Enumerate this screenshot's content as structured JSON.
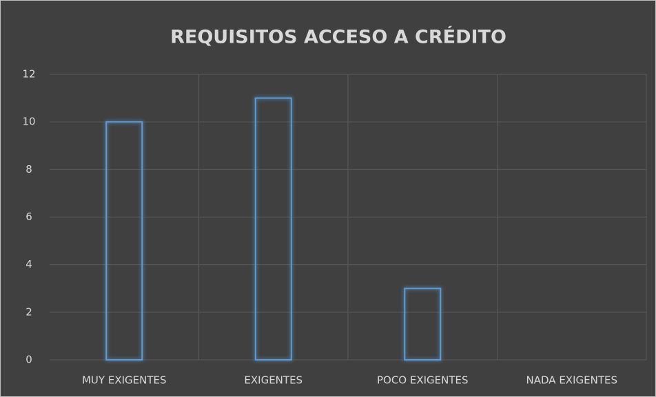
{
  "chart_data": {
    "type": "bar",
    "title": "REQUISITOS ACCESO A CRÉDITO",
    "categories": [
      "MUY EXIGENTES",
      "EXIGENTES",
      "POCO EXIGENTES",
      "NADA EXIGENTES"
    ],
    "values": [
      10,
      11,
      3,
      0
    ],
    "color": "#5b9bd5",
    "ylim": [
      0,
      12
    ],
    "yticks": [
      0,
      2,
      4,
      6,
      8,
      10,
      12
    ],
    "grid": true
  }
}
